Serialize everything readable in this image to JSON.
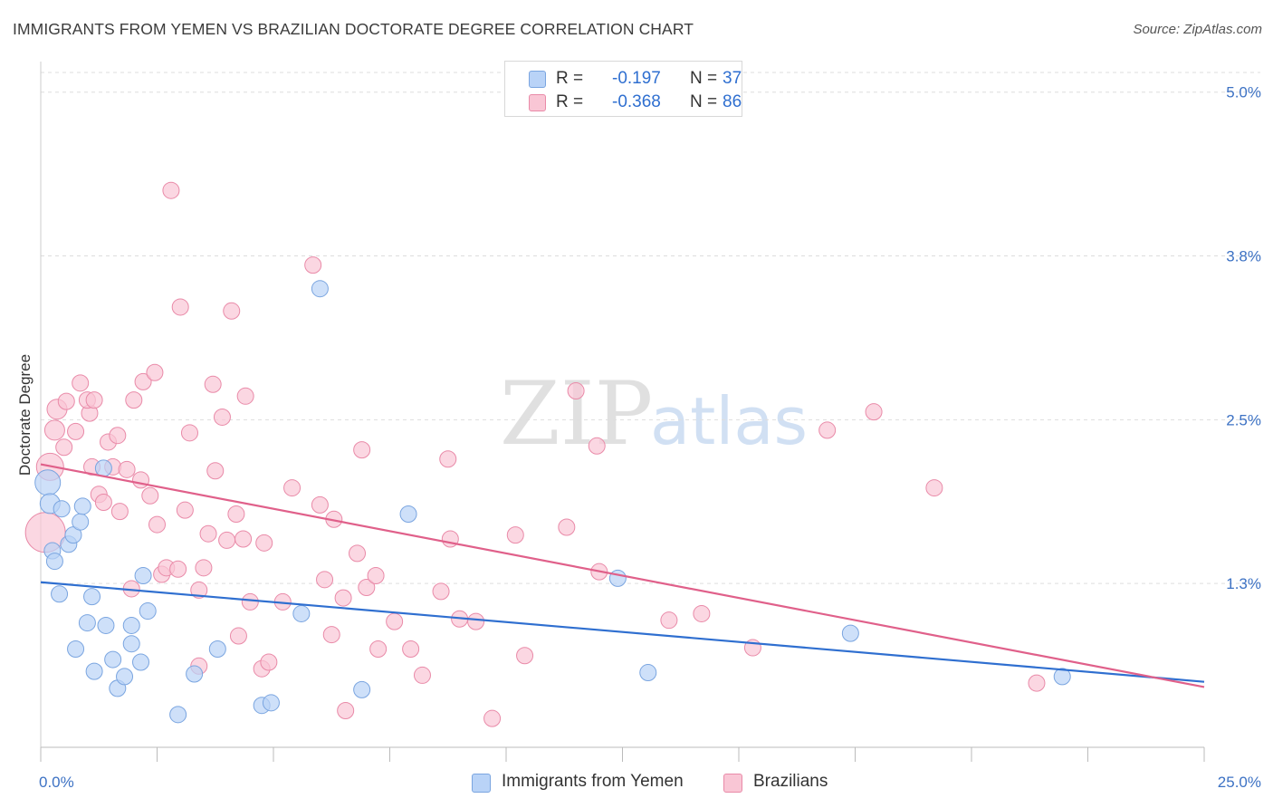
{
  "header": {
    "title": "IMMIGRANTS FROM YEMEN VS BRAZILIAN DOCTORATE DEGREE CORRELATION CHART",
    "source": "Source: ZipAtlas.com"
  },
  "legend_top": {
    "rows": [
      {
        "r_label": "R =",
        "r_value": "-0.197",
        "n_label": "N =",
        "n_value": "37"
      },
      {
        "r_label": "R =",
        "r_value": "-0.368",
        "n_label": "N =",
        "n_value": "86"
      }
    ]
  },
  "watermark": {
    "zip": "ZIP",
    "atlas": "atlas"
  },
  "colors": {
    "yemen_fill": "#b9d3f7",
    "yemen_stroke": "#7aa5e0",
    "yemen_line": "#2f6fd0",
    "brazil_fill": "#f9c6d5",
    "brazil_stroke": "#e98aa8",
    "brazil_line": "#e0608a",
    "tick_label": "#3d72c4",
    "grid": "#dddddd"
  },
  "chart_data": {
    "type": "scatter",
    "title": "IMMIGRANTS FROM YEMEN VS BRAZILIAN DOCTORATE DEGREE CORRELATION CHART",
    "xlabel": "",
    "ylabel": "Doctorate Degree",
    "xlim": [
      0,
      25
    ],
    "ylim": [
      0,
      5.15
    ],
    "x_tick_labels": [
      "0.0%",
      "25.0%"
    ],
    "y_ticks": [
      1.25,
      2.5,
      3.75,
      5.0
    ],
    "y_tick_labels": [
      "1.3%",
      "2.5%",
      "3.8%",
      "5.0%"
    ],
    "series": [
      {
        "name": "Immigrants from Yemen",
        "r": -0.197,
        "n": 37,
        "trend": {
          "x": [
            0,
            25
          ],
          "y": [
            1.26,
            0.5
          ]
        },
        "points": [
          [
            0.15,
            2.02,
            14
          ],
          [
            0.2,
            1.86,
            11
          ],
          [
            0.25,
            1.5,
            9
          ],
          [
            0.3,
            1.42,
            9
          ],
          [
            0.45,
            1.82,
            9
          ],
          [
            0.4,
            1.17,
            9
          ],
          [
            0.6,
            1.55,
            9
          ],
          [
            0.7,
            1.62,
            9
          ],
          [
            0.85,
            1.72,
            9
          ],
          [
            0.9,
            1.84,
            9
          ],
          [
            0.75,
            0.75,
            9
          ],
          [
            1.0,
            0.95,
            9
          ],
          [
            1.1,
            1.15,
            9
          ],
          [
            1.15,
            0.58,
            9
          ],
          [
            1.4,
            0.93,
            9
          ],
          [
            1.55,
            0.67,
            9
          ],
          [
            1.65,
            0.45,
            9
          ],
          [
            1.8,
            0.54,
            9
          ],
          [
            1.95,
            0.93,
            9
          ],
          [
            1.95,
            0.79,
            9
          ],
          [
            2.15,
            0.65,
            9
          ],
          [
            2.2,
            1.31,
            9
          ],
          [
            2.3,
            1.04,
            9
          ],
          [
            1.35,
            2.13,
            9
          ],
          [
            2.95,
            0.25,
            9
          ],
          [
            3.3,
            0.56,
            9
          ],
          [
            3.8,
            0.75,
            9
          ],
          [
            4.75,
            0.32,
            9
          ],
          [
            4.95,
            0.34,
            9
          ],
          [
            5.6,
            1.02,
            9
          ],
          [
            6.0,
            3.5,
            9
          ],
          [
            6.9,
            0.44,
            9
          ],
          [
            7.9,
            1.78,
            9
          ],
          [
            12.4,
            1.29,
            9
          ],
          [
            13.05,
            0.57,
            9
          ],
          [
            17.4,
            0.87,
            9
          ],
          [
            21.95,
            0.54,
            9
          ]
        ]
      },
      {
        "name": "Brazilians",
        "r": -0.368,
        "n": 86,
        "trend": {
          "x": [
            0,
            25
          ],
          "y": [
            2.16,
            0.46
          ]
        },
        "points": [
          [
            0.1,
            1.64,
            22
          ],
          [
            0.2,
            2.14,
            15
          ],
          [
            0.3,
            2.42,
            11
          ],
          [
            0.35,
            2.58,
            11
          ],
          [
            0.5,
            2.29,
            9
          ],
          [
            0.55,
            2.64,
            9
          ],
          [
            0.75,
            2.41,
            9
          ],
          [
            0.85,
            2.78,
            9
          ],
          [
            1.05,
            2.55,
            9
          ],
          [
            1.0,
            2.65,
            9
          ],
          [
            1.15,
            2.65,
            9
          ],
          [
            1.1,
            2.14,
            9
          ],
          [
            1.25,
            1.93,
            9
          ],
          [
            1.35,
            1.87,
            9
          ],
          [
            1.45,
            2.33,
            9
          ],
          [
            1.55,
            2.14,
            9
          ],
          [
            1.65,
            2.38,
            9
          ],
          [
            1.7,
            1.8,
            9
          ],
          [
            1.85,
            2.12,
            9
          ],
          [
            1.95,
            1.21,
            9
          ],
          [
            2.0,
            2.65,
            9
          ],
          [
            2.15,
            2.04,
            9
          ],
          [
            2.2,
            2.79,
            9
          ],
          [
            2.35,
            1.92,
            9
          ],
          [
            2.45,
            2.86,
            9
          ],
          [
            2.5,
            1.7,
            9
          ],
          [
            2.6,
            1.32,
            9
          ],
          [
            2.7,
            1.37,
            9
          ],
          [
            2.8,
            4.25,
            9
          ],
          [
            2.95,
            1.36,
            9
          ],
          [
            3.0,
            3.36,
            9
          ],
          [
            3.1,
            1.81,
            9
          ],
          [
            3.2,
            2.4,
            9
          ],
          [
            3.4,
            1.2,
            9
          ],
          [
            3.5,
            1.37,
            9
          ],
          [
            3.6,
            1.63,
            9
          ],
          [
            3.7,
            2.77,
            9
          ],
          [
            3.75,
            2.11,
            9
          ],
          [
            3.9,
            2.52,
            9
          ],
          [
            4.0,
            1.58,
            9
          ],
          [
            4.1,
            3.33,
            9
          ],
          [
            4.2,
            1.78,
            9
          ],
          [
            4.35,
            1.59,
            9
          ],
          [
            4.5,
            1.11,
            9
          ],
          [
            4.4,
            2.68,
            9
          ],
          [
            4.75,
            0.6,
            9
          ],
          [
            4.8,
            1.56,
            9
          ],
          [
            4.9,
            0.65,
            9
          ],
          [
            5.2,
            1.11,
            9
          ],
          [
            5.4,
            1.98,
            9
          ],
          [
            5.85,
            3.68,
            9
          ],
          [
            6.0,
            1.85,
            9
          ],
          [
            6.1,
            1.28,
            9
          ],
          [
            6.3,
            1.74,
            9
          ],
          [
            6.5,
            1.14,
            9
          ],
          [
            6.55,
            0.28,
            9
          ],
          [
            6.8,
            1.48,
            9
          ],
          [
            7.0,
            1.22,
            9
          ],
          [
            6.9,
            2.27,
            9
          ],
          [
            7.2,
            1.31,
            9
          ],
          [
            7.25,
            0.75,
            9
          ],
          [
            7.6,
            0.96,
            9
          ],
          [
            7.95,
            0.75,
            9
          ],
          [
            8.2,
            0.55,
            9
          ],
          [
            8.6,
            1.19,
            9
          ],
          [
            8.75,
            2.2,
            9
          ],
          [
            8.8,
            1.59,
            9
          ],
          [
            9.0,
            0.98,
            9
          ],
          [
            9.35,
            0.96,
            9
          ],
          [
            9.7,
            0.22,
            9
          ],
          [
            10.2,
            1.62,
            9
          ],
          [
            10.4,
            0.7,
            9
          ],
          [
            11.3,
            1.68,
            9
          ],
          [
            11.5,
            2.72,
            9
          ],
          [
            11.95,
            2.3,
            9
          ],
          [
            12.0,
            1.34,
            9
          ],
          [
            13.5,
            0.97,
            9
          ],
          [
            14.2,
            1.02,
            9
          ],
          [
            15.3,
            0.76,
            9
          ],
          [
            16.9,
            2.42,
            9
          ],
          [
            17.9,
            2.56,
            9
          ],
          [
            19.2,
            1.98,
            9
          ],
          [
            21.4,
            0.49,
            9
          ],
          [
            6.25,
            0.86,
            9
          ],
          [
            3.4,
            0.62,
            9
          ],
          [
            4.25,
            0.85,
            9
          ]
        ]
      }
    ]
  }
}
